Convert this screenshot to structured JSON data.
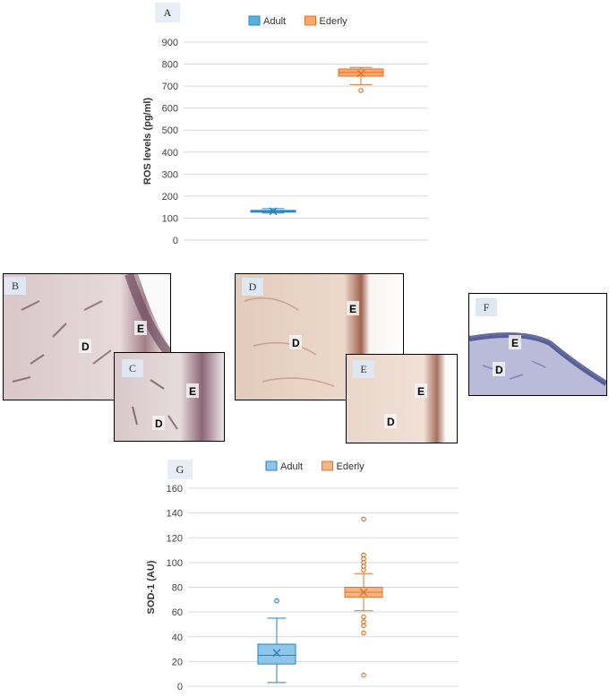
{
  "chart_data": [
    {
      "type": "box",
      "panel_label": "A",
      "ylabel": "ROS levels (pg/ml)",
      "ylim": [
        0,
        900
      ],
      "yticks": [
        0,
        100,
        200,
        300,
        400,
        500,
        600,
        700,
        800,
        900
      ],
      "legend": "top-center",
      "grid": true,
      "series": [
        {
          "name": "Adult",
          "color": "#5aafe0",
          "stroke": "#2a82bf",
          "min": 123,
          "q1": 127,
          "median": 131,
          "q3": 135,
          "max": 143,
          "mean": 131,
          "outliers": []
        },
        {
          "name": "Ederly",
          "color": "#f7a86a",
          "stroke": "#d9772f",
          "min": 707,
          "q1": 745,
          "median": 762,
          "q3": 778,
          "max": 785,
          "mean": 758,
          "outliers": [
            680
          ]
        }
      ]
    },
    {
      "type": "box",
      "panel_label": "G",
      "ylabel": "SOD-1 (AU)",
      "ylim": [
        0,
        160
      ],
      "yticks": [
        0,
        20,
        40,
        60,
        80,
        100,
        120,
        140,
        160
      ],
      "legend": "top-center",
      "grid": true,
      "series": [
        {
          "name": "Adult",
          "color": "#8dc6ea",
          "stroke": "#2a82bf",
          "min": 3,
          "q1": 18,
          "median": 25,
          "q3": 34,
          "max": 55,
          "mean": 27,
          "outliers": [
            69
          ]
        },
        {
          "name": "Ederly",
          "color": "#f9b483",
          "stroke": "#d9772f",
          "min": 61,
          "q1": 72,
          "median": 76,
          "q3": 80,
          "max": 91,
          "mean": 76,
          "outliers": [
            135,
            106,
            103,
            100,
            97,
            94,
            56,
            52,
            49,
            43,
            9
          ]
        }
      ]
    }
  ],
  "micrographs": [
    {
      "label": "B",
      "epi": "E",
      "derm": "D",
      "stain": "he_large"
    },
    {
      "label": "C",
      "epi": "E",
      "derm": "D",
      "stain": "he_small"
    },
    {
      "label": "D",
      "epi": "E",
      "derm": "D",
      "stain": "pale_large"
    },
    {
      "label": "E",
      "epi": "E",
      "derm": "D",
      "stain": "pale_small"
    },
    {
      "label": "F",
      "epi": "E",
      "derm": "D",
      "stain": "blue"
    }
  ]
}
